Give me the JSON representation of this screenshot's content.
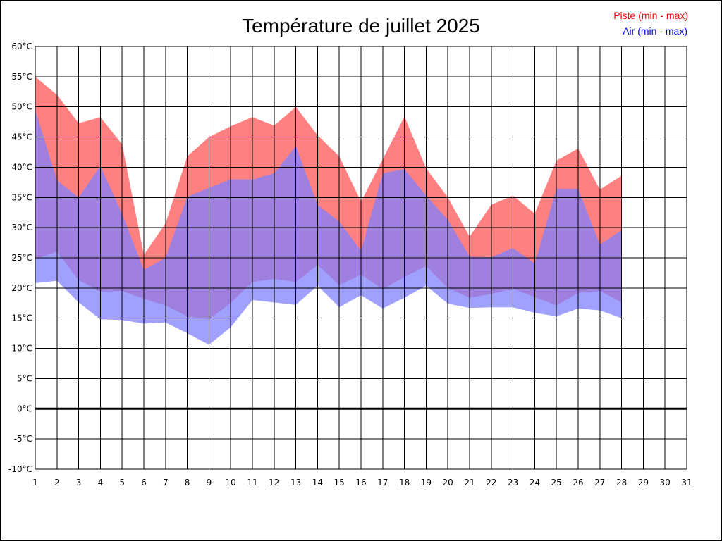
{
  "chart_data": {
    "type": "area",
    "title": "Température de juillet 2025",
    "xlabel": "",
    "ylabel": "",
    "xlim": [
      1,
      31
    ],
    "ylim": [
      -10,
      60
    ],
    "y_ticks": [
      -10,
      -5,
      0,
      5,
      10,
      15,
      20,
      25,
      30,
      35,
      40,
      45,
      50,
      55,
      60
    ],
    "y_unit": "°C",
    "x_ticks": [
      1,
      2,
      3,
      4,
      5,
      6,
      7,
      8,
      9,
      10,
      11,
      12,
      13,
      14,
      15,
      16,
      17,
      18,
      19,
      20,
      21,
      22,
      23,
      24,
      25,
      26,
      27,
      28,
      29,
      30,
      31
    ],
    "grid": true,
    "zero_line": true,
    "legend_position": "top-right",
    "days": [
      1,
      2,
      3,
      4,
      5,
      6,
      7,
      8,
      9,
      10,
      11,
      12,
      13,
      14,
      15,
      16,
      17,
      18,
      19,
      20,
      21,
      22,
      23,
      24,
      25,
      26,
      27,
      28
    ],
    "series": [
      {
        "name": "Piste (min - max)",
        "color": "#ff8080",
        "text_color": "#ff0000",
        "min": [
          24.8,
          26.0,
          21.3,
          19.4,
          19.5,
          18.2,
          17.1,
          15.3,
          14.8,
          17.5,
          21.0,
          21.5,
          21.0,
          23.8,
          20.5,
          22.2,
          19.8,
          21.8,
          23.6,
          20.0,
          18.4,
          19.0,
          19.9,
          18.5,
          17.1,
          19.2,
          19.5,
          17.6
        ],
        "max": [
          55.0,
          52.0,
          47.3,
          48.3,
          43.8,
          25.5,
          30.7,
          41.8,
          45.0,
          46.8,
          48.3,
          46.9,
          50.0,
          45.3,
          41.8,
          34.3,
          41.3,
          48.4,
          39.8,
          35.0,
          28.5,
          33.8,
          35.3,
          32.3,
          41.1,
          43.1,
          36.3,
          38.6
        ]
      },
      {
        "name": "Air (min - max)",
        "color": "#8080ff",
        "text_color": "#0000ff",
        "min": [
          20.8,
          21.2,
          17.6,
          14.8,
          14.7,
          14.1,
          14.3,
          12.5,
          10.6,
          13.5,
          18.0,
          17.6,
          17.2,
          20.4,
          16.8,
          18.8,
          16.6,
          18.4,
          20.4,
          17.4,
          16.7,
          16.8,
          16.8,
          15.9,
          15.3,
          16.6,
          16.3,
          15.0
        ],
        "max": [
          49.5,
          37.8,
          35.0,
          40.2,
          32.3,
          23.0,
          25.0,
          35.1,
          36.6,
          38.0,
          38.0,
          39.0,
          43.5,
          33.8,
          31.0,
          26.2,
          39.0,
          39.7,
          35.3,
          31.3,
          25.2,
          25.1,
          26.6,
          24.1,
          36.4,
          36.4,
          27.2,
          29.6
        ]
      }
    ]
  }
}
